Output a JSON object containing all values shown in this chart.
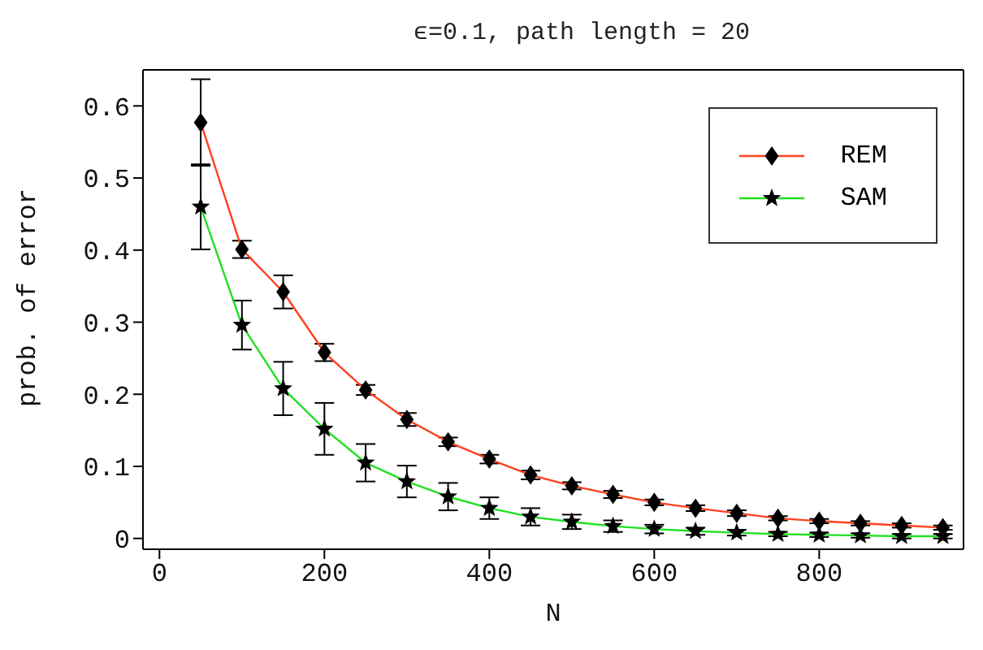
{
  "chart_data": {
    "type": "line",
    "title": "ϵ=0.1, path length = 20",
    "xlabel": "N",
    "ylabel": "prob. of error",
    "x": [
      50,
      100,
      150,
      200,
      250,
      300,
      350,
      400,
      450,
      500,
      550,
      600,
      650,
      700,
      750,
      800,
      850,
      900,
      950
    ],
    "xlim": [
      -20,
      975
    ],
    "xticks": [
      0,
      200,
      400,
      600,
      800
    ],
    "ylim": [
      -0.015,
      0.65
    ],
    "yticks": [
      {
        "value": 0,
        "label": "0"
      },
      {
        "value": 0.1,
        "label": "0.1"
      },
      {
        "value": 0.2,
        "label": "0.2"
      },
      {
        "value": 0.3,
        "label": "0.3"
      },
      {
        "value": 0.4,
        "label": "0.4"
      },
      {
        "value": 0.5,
        "label": "0.5"
      },
      {
        "value": 0.6,
        "label": "0.6"
      }
    ],
    "legend": "top right",
    "grid": false,
    "series": [
      {
        "name": "REM",
        "color": "#ff4020",
        "marker": "diamond",
        "colors": [
          "#000000",
          "#000000",
          "#000000",
          "#000000",
          "#000000",
          "#000000",
          "#000000",
          "#000000",
          "#000000",
          "#000000",
          "#000000",
          "#000000",
          "#000000",
          "#000000",
          "#000000",
          "#000000",
          "#000000",
          "#000000",
          "#000000"
        ],
        "values": [
          0.577,
          0.401,
          0.342,
          0.258,
          0.206,
          0.165,
          0.134,
          0.11,
          0.088,
          0.073,
          0.061,
          0.05,
          0.042,
          0.035,
          0.028,
          0.024,
          0.021,
          0.018,
          0.015
        ],
        "errors": [
          0.06,
          0.012,
          0.023,
          0.012,
          0.007,
          0.009,
          0.006,
          0.006,
          0.006,
          0.005,
          0.005,
          0.004,
          0.004,
          0.004,
          0.003,
          0.003,
          0.003,
          0.003,
          0.003
        ]
      },
      {
        "name": "SAM",
        "color": "#20e020",
        "marker": "star",
        "colors": [
          "#000000",
          "#000000",
          "#000000",
          "#000000",
          "#000000",
          "#000000",
          "#000000",
          "#000000",
          "#000000",
          "#000000",
          "#000000",
          "#000000",
          "#000000",
          "#000000",
          "#000000",
          "#000000",
          "#000000",
          "#000000",
          "#000000"
        ],
        "values": [
          0.46,
          0.296,
          0.208,
          0.152,
          0.105,
          0.079,
          0.058,
          0.042,
          0.03,
          0.023,
          0.017,
          0.013,
          0.01,
          0.008,
          0.006,
          0.005,
          0.004,
          0.003,
          0.003
        ],
        "errors": [
          0.059,
          0.034,
          0.037,
          0.036,
          0.026,
          0.022,
          0.019,
          0.015,
          0.012,
          0.01,
          0.008,
          0.006,
          0.005,
          0.004,
          0.003,
          0.003,
          0.003,
          0.003,
          0.003
        ]
      }
    ]
  }
}
